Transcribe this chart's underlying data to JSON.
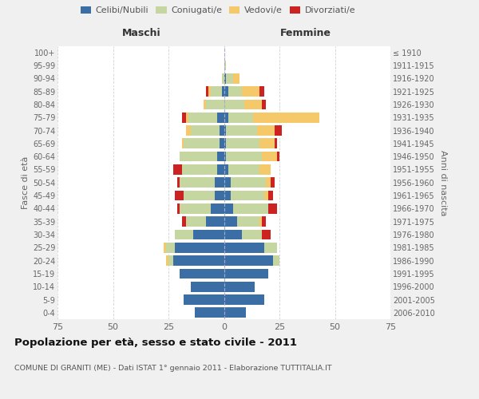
{
  "age_groups": [
    "0-4",
    "5-9",
    "10-14",
    "15-19",
    "20-24",
    "25-29",
    "30-34",
    "35-39",
    "40-44",
    "45-49",
    "50-54",
    "55-59",
    "60-64",
    "65-69",
    "70-74",
    "75-79",
    "80-84",
    "85-89",
    "90-94",
    "95-99",
    "100+"
  ],
  "birth_years": [
    "2006-2010",
    "2001-2005",
    "1996-2000",
    "1991-1995",
    "1986-1990",
    "1981-1985",
    "1976-1980",
    "1971-1975",
    "1966-1970",
    "1961-1965",
    "1956-1960",
    "1951-1955",
    "1946-1950",
    "1941-1945",
    "1936-1940",
    "1931-1935",
    "1926-1930",
    "1921-1925",
    "1916-1920",
    "1911-1915",
    "≤ 1910"
  ],
  "male": {
    "celibi": [
      13,
      18,
      15,
      20,
      23,
      22,
      14,
      8,
      6,
      4,
      4,
      3,
      3,
      2,
      2,
      3,
      0,
      1,
      0,
      0,
      0
    ],
    "coniugati": [
      0,
      0,
      0,
      0,
      2,
      4,
      8,
      9,
      14,
      14,
      16,
      16,
      17,
      16,
      13,
      13,
      8,
      5,
      1,
      0,
      0
    ],
    "vedovi": [
      0,
      0,
      0,
      0,
      1,
      1,
      0,
      0,
      0,
      0,
      0,
      0,
      0,
      1,
      2,
      1,
      1,
      1,
      0,
      0,
      0
    ],
    "divorziati": [
      0,
      0,
      0,
      0,
      0,
      0,
      0,
      2,
      1,
      4,
      1,
      4,
      0,
      0,
      0,
      2,
      0,
      1,
      0,
      0,
      0
    ]
  },
  "female": {
    "nubili": [
      10,
      18,
      14,
      20,
      22,
      18,
      8,
      6,
      4,
      3,
      3,
      2,
      1,
      1,
      1,
      2,
      0,
      2,
      1,
      0,
      0
    ],
    "coniugate": [
      0,
      0,
      0,
      0,
      3,
      6,
      9,
      10,
      16,
      15,
      16,
      14,
      16,
      15,
      14,
      11,
      9,
      6,
      3,
      1,
      0
    ],
    "vedove": [
      0,
      0,
      0,
      0,
      0,
      0,
      0,
      1,
      0,
      2,
      2,
      5,
      7,
      7,
      8,
      30,
      8,
      8,
      3,
      0,
      0
    ],
    "divorziate": [
      0,
      0,
      0,
      0,
      0,
      0,
      4,
      2,
      4,
      2,
      2,
      0,
      1,
      1,
      3,
      0,
      2,
      2,
      0,
      0,
      0
    ]
  },
  "colors": {
    "celibi": "#3a6ea5",
    "coniugati": "#c5d6a0",
    "vedovi": "#f5c96a",
    "divorziati": "#cc2222"
  },
  "xlim": 75,
  "title": "Popolazione per età, sesso e stato civile - 2011",
  "subtitle": "COMUNE DI GRANITI (ME) - Dati ISTAT 1° gennaio 2011 - Elaborazione TUTTITALIA.IT",
  "ylabel_left": "Fasce di età",
  "ylabel_right": "Anni di nascita",
  "bg_color": "#f0f0f0",
  "plot_bg": "#ffffff",
  "grid_color": "#cccccc"
}
